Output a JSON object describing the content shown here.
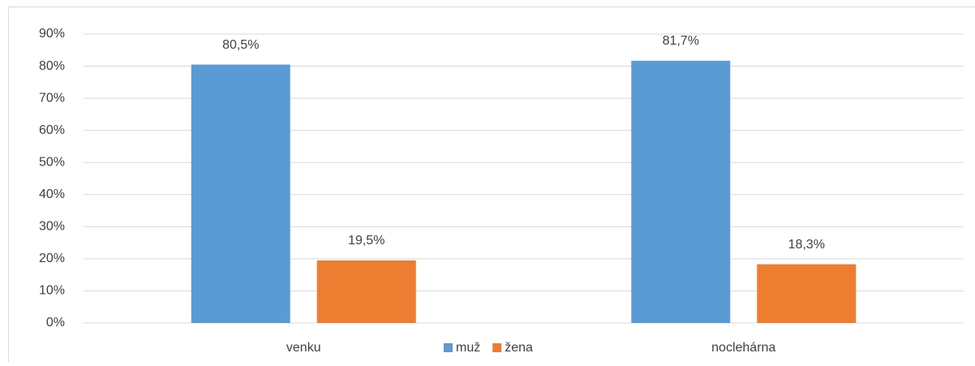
{
  "chart_data": {
    "type": "bar",
    "categories": [
      "venku",
      "noclehárna"
    ],
    "series": [
      {
        "name": "muž",
        "color": "#5b9bd5",
        "values": [
          80.5,
          81.7
        ],
        "value_labels": [
          "80,5%",
          "81,7%"
        ]
      },
      {
        "name": "žena",
        "color": "#ed7d31",
        "values": [
          19.5,
          18.3
        ],
        "value_labels": [
          "19,5%",
          "18,3%"
        ]
      }
    ],
    "ylim": [
      0,
      90
    ],
    "yticks": [
      {
        "value": 0,
        "label": "0%"
      },
      {
        "value": 10,
        "label": "10%"
      },
      {
        "value": 20,
        "label": "20%"
      },
      {
        "value": 30,
        "label": "30%"
      },
      {
        "value": 40,
        "label": "40%"
      },
      {
        "value": 50,
        "label": "50%"
      },
      {
        "value": 60,
        "label": "60%"
      },
      {
        "value": 70,
        "label": "70%"
      },
      {
        "value": 80,
        "label": "80%"
      },
      {
        "value": 90,
        "label": "90%"
      }
    ],
    "grid": true,
    "legend": "bottom"
  }
}
